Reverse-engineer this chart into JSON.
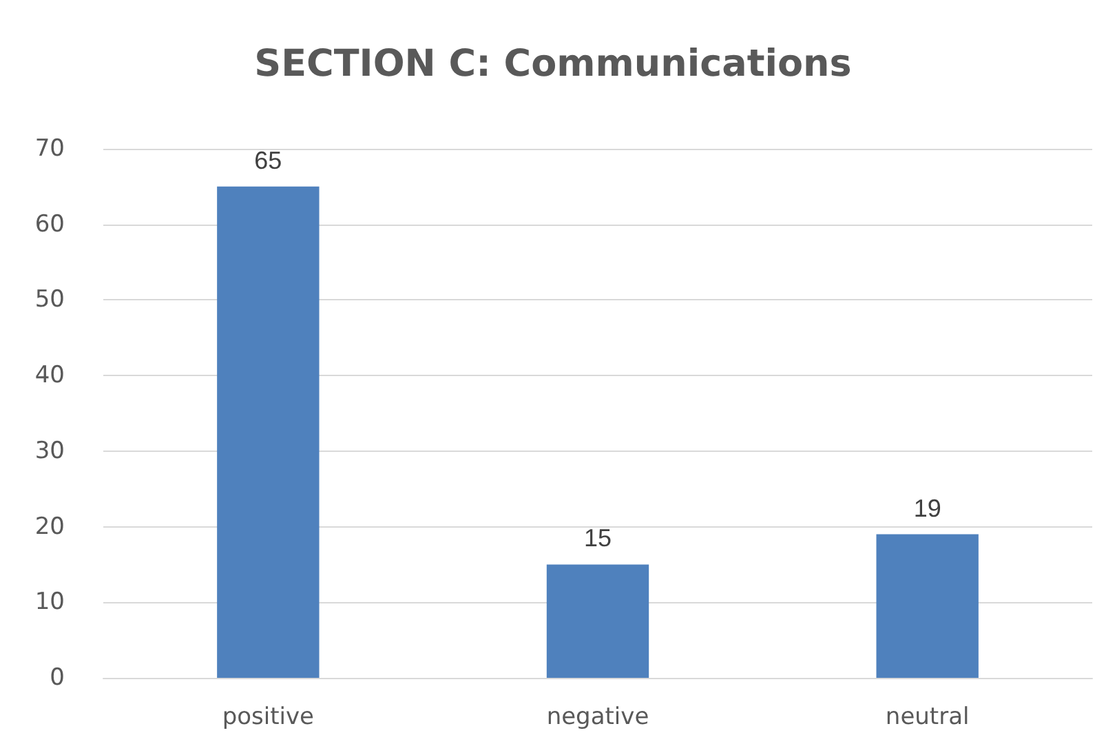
{
  "chart_data": {
    "type": "bar",
    "title": "SECTION C: Communications",
    "categories": [
      "positive",
      "negative",
      "neutral"
    ],
    "values": [
      65,
      15,
      19
    ],
    "color": "#4f81bd",
    "ylim": [
      0,
      70
    ],
    "yticks": [
      0,
      10,
      20,
      30,
      40,
      50,
      60,
      70
    ],
    "grid": "y",
    "data_labels": true
  }
}
